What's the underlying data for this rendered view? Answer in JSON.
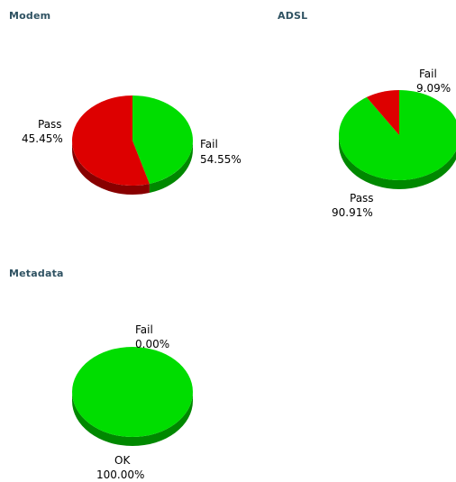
{
  "chart_data": [
    {
      "type": "pie",
      "title": "Modem",
      "slices": [
        {
          "label": "Pass",
          "value": 45.45,
          "value_text": "45.45%"
        },
        {
          "label": "Fail",
          "value": 54.55,
          "value_text": "54.55%"
        }
      ],
      "style": "3d",
      "legend": "none"
    },
    {
      "type": "pie",
      "title": "ADSL",
      "slices": [
        {
          "label": "Pass",
          "value": 90.91,
          "value_text": "90.91%"
        },
        {
          "label": "Fail",
          "value": 9.09,
          "value_text": "9.09%"
        }
      ],
      "style": "3d",
      "legend": "none"
    },
    {
      "type": "pie",
      "title": "Metadata",
      "slices": [
        {
          "label": "OK",
          "value": 100.0,
          "value_text": "100.00%"
        },
        {
          "label": "Fail",
          "value": 0.0,
          "value_text": "0.00%"
        }
      ],
      "style": "3d",
      "legend": "none"
    }
  ],
  "colors": {
    "pass": "#00dd00",
    "pass_side": "#008800",
    "fail": "#dd0000",
    "fail_side": "#880000",
    "title": "#2f5262"
  }
}
